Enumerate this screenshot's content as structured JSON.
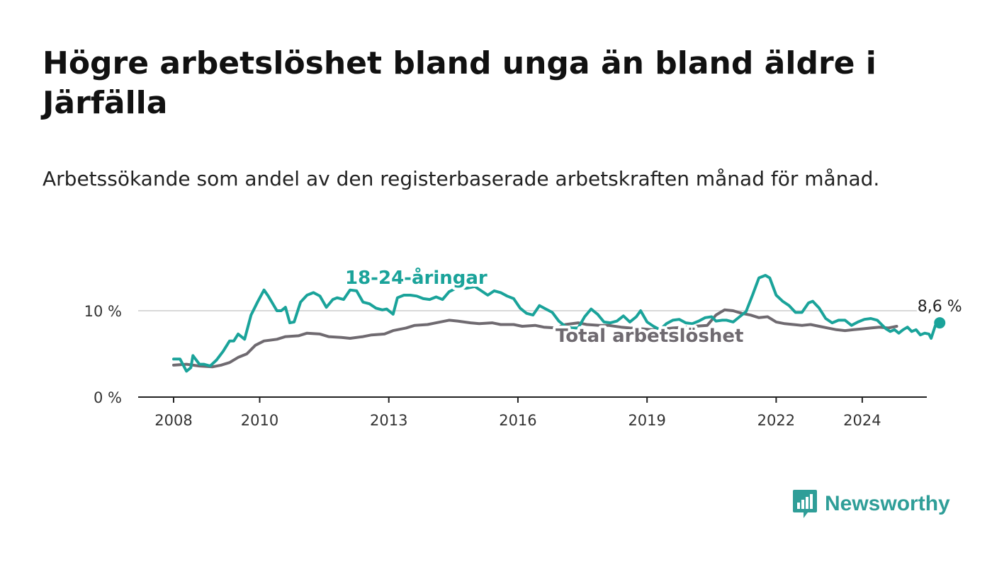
{
  "header": {
    "title": "Högre arbetslöshet bland unga än bland äldre i Järfälla",
    "subtitle": "Arbetssökande som andel av den registerbaserade arbetskraften månad för månad."
  },
  "brand": {
    "name": "Newsworthy",
    "icon": "newsworthy-bar-chart-icon",
    "color": "#2f9e98"
  },
  "chart_data": {
    "type": "line",
    "xlim": [
      2008,
      2025.5
    ],
    "ylim": [
      0,
      15
    ],
    "x_ticks": [
      2008,
      2010,
      2013,
      2016,
      2019,
      2022,
      2024
    ],
    "x_tick_labels": [
      "2008",
      "2010",
      "2013",
      "2016",
      "2019",
      "2022",
      "2024"
    ],
    "y_ticks": [
      0,
      10
    ],
    "y_tick_labels": [
      "0 %",
      "10 %"
    ],
    "grid": "horizontal",
    "series": [
      {
        "name": "Total arbetslöshet",
        "label": "Total arbetslöshet",
        "color": "#6f6a70",
        "points": [
          [
            2008.0,
            3.7
          ],
          [
            2008.3,
            3.8
          ],
          [
            2008.6,
            3.6
          ],
          [
            2008.9,
            3.5
          ],
          [
            2009.1,
            3.7
          ],
          [
            2009.3,
            4.0
          ],
          [
            2009.5,
            4.6
          ],
          [
            2009.7,
            5.0
          ],
          [
            2009.9,
            6.0
          ],
          [
            2010.1,
            6.5
          ],
          [
            2010.4,
            6.7
          ],
          [
            2010.6,
            7.0
          ],
          [
            2010.9,
            7.1
          ],
          [
            2011.1,
            7.4
          ],
          [
            2011.4,
            7.3
          ],
          [
            2011.6,
            7.0
          ],
          [
            2011.9,
            6.9
          ],
          [
            2012.1,
            6.8
          ],
          [
            2012.4,
            7.0
          ],
          [
            2012.6,
            7.2
          ],
          [
            2012.9,
            7.3
          ],
          [
            2013.1,
            7.7
          ],
          [
            2013.4,
            8.0
          ],
          [
            2013.6,
            8.3
          ],
          [
            2013.9,
            8.4
          ],
          [
            2014.1,
            8.6
          ],
          [
            2014.4,
            8.9
          ],
          [
            2014.6,
            8.8
          ],
          [
            2014.9,
            8.6
          ],
          [
            2015.1,
            8.5
          ],
          [
            2015.4,
            8.6
          ],
          [
            2015.6,
            8.4
          ],
          [
            2015.9,
            8.4
          ],
          [
            2016.1,
            8.2
          ],
          [
            2016.4,
            8.3
          ],
          [
            2016.6,
            8.1
          ],
          [
            2016.9,
            8.0
          ],
          [
            2017.1,
            8.4
          ],
          [
            2017.4,
            8.6
          ],
          [
            2017.6,
            8.4
          ],
          [
            2017.9,
            8.3
          ],
          [
            2018.1,
            8.3
          ],
          [
            2018.4,
            8.1
          ],
          [
            2018.6,
            8.0
          ],
          [
            2018.9,
            7.9
          ],
          [
            2019.1,
            7.8
          ],
          [
            2019.4,
            7.9
          ],
          [
            2019.6,
            8.0
          ],
          [
            2019.9,
            8.1
          ],
          [
            2020.1,
            8.2
          ],
          [
            2020.4,
            8.3
          ],
          [
            2020.6,
            9.5
          ],
          [
            2020.8,
            10.1
          ],
          [
            2021.0,
            10.0
          ],
          [
            2021.2,
            9.7
          ],
          [
            2021.4,
            9.5
          ],
          [
            2021.6,
            9.2
          ],
          [
            2021.8,
            9.3
          ],
          [
            2022.0,
            8.7
          ],
          [
            2022.2,
            8.5
          ],
          [
            2022.4,
            8.4
          ],
          [
            2022.6,
            8.3
          ],
          [
            2022.8,
            8.4
          ],
          [
            2023.0,
            8.2
          ],
          [
            2023.2,
            8.0
          ],
          [
            2023.4,
            7.8
          ],
          [
            2023.6,
            7.7
          ],
          [
            2023.8,
            7.8
          ],
          [
            2024.0,
            7.9
          ],
          [
            2024.2,
            8.0
          ],
          [
            2024.4,
            8.1
          ],
          [
            2024.6,
            8.0
          ],
          [
            2024.8,
            8.2
          ]
        ]
      },
      {
        "name": "18-24-åringar",
        "label": "18-24-åringar",
        "color": "#1aa39a",
        "end_label": "8,6 %",
        "points": [
          [
            2008.0,
            4.4
          ],
          [
            2008.15,
            4.4
          ],
          [
            2008.3,
            3.0
          ],
          [
            2008.4,
            3.4
          ],
          [
            2008.45,
            4.8
          ],
          [
            2008.6,
            3.8
          ],
          [
            2008.7,
            3.8
          ],
          [
            2008.85,
            3.6
          ],
          [
            2009.0,
            4.3
          ],
          [
            2009.15,
            5.3
          ],
          [
            2009.3,
            6.5
          ],
          [
            2009.4,
            6.5
          ],
          [
            2009.5,
            7.3
          ],
          [
            2009.65,
            6.7
          ],
          [
            2009.8,
            9.5
          ],
          [
            2009.95,
            11.0
          ],
          [
            2010.1,
            12.4
          ],
          [
            2010.2,
            11.7
          ],
          [
            2010.4,
            10.0
          ],
          [
            2010.5,
            10.0
          ],
          [
            2010.6,
            10.4
          ],
          [
            2010.7,
            8.6
          ],
          [
            2010.8,
            8.7
          ],
          [
            2010.95,
            11.0
          ],
          [
            2011.1,
            11.8
          ],
          [
            2011.25,
            12.1
          ],
          [
            2011.4,
            11.7
          ],
          [
            2011.55,
            10.4
          ],
          [
            2011.7,
            11.3
          ],
          [
            2011.8,
            11.5
          ],
          [
            2011.95,
            11.3
          ],
          [
            2012.1,
            12.4
          ],
          [
            2012.25,
            12.3
          ],
          [
            2012.4,
            11.0
          ],
          [
            2012.55,
            10.8
          ],
          [
            2012.7,
            10.3
          ],
          [
            2012.85,
            10.1
          ],
          [
            2012.95,
            10.2
          ],
          [
            2013.1,
            9.6
          ],
          [
            2013.2,
            11.5
          ],
          [
            2013.35,
            11.8
          ],
          [
            2013.5,
            11.8
          ],
          [
            2013.65,
            11.7
          ],
          [
            2013.8,
            11.4
          ],
          [
            2013.95,
            11.3
          ],
          [
            2014.1,
            11.6
          ],
          [
            2014.25,
            11.3
          ],
          [
            2014.4,
            12.2
          ],
          [
            2014.6,
            12.7
          ],
          [
            2014.8,
            12.6
          ],
          [
            2015.0,
            12.8
          ],
          [
            2015.15,
            12.3
          ],
          [
            2015.3,
            11.8
          ],
          [
            2015.45,
            12.3
          ],
          [
            2015.6,
            12.1
          ],
          [
            2015.75,
            11.7
          ],
          [
            2015.9,
            11.4
          ],
          [
            2016.05,
            10.3
          ],
          [
            2016.2,
            9.7
          ],
          [
            2016.35,
            9.5
          ],
          [
            2016.5,
            10.6
          ],
          [
            2016.65,
            10.2
          ],
          [
            2016.8,
            9.8
          ],
          [
            2016.95,
            8.8
          ],
          [
            2017.1,
            8.2
          ],
          [
            2017.25,
            8.0
          ],
          [
            2017.4,
            8.0
          ],
          [
            2017.55,
            9.3
          ],
          [
            2017.7,
            10.2
          ],
          [
            2017.85,
            9.6
          ],
          [
            2018.0,
            8.7
          ],
          [
            2018.15,
            8.6
          ],
          [
            2018.3,
            8.8
          ],
          [
            2018.45,
            9.4
          ],
          [
            2018.6,
            8.7
          ],
          [
            2018.75,
            9.3
          ],
          [
            2018.85,
            10.0
          ],
          [
            2019.0,
            8.7
          ],
          [
            2019.15,
            8.2
          ],
          [
            2019.3,
            7.8
          ],
          [
            2019.45,
            8.5
          ],
          [
            2019.6,
            8.9
          ],
          [
            2019.75,
            9.0
          ],
          [
            2019.9,
            8.6
          ],
          [
            2020.05,
            8.5
          ],
          [
            2020.2,
            8.8
          ],
          [
            2020.35,
            9.2
          ],
          [
            2020.5,
            9.3
          ],
          [
            2020.6,
            8.8
          ],
          [
            2020.75,
            8.9
          ],
          [
            2020.85,
            8.9
          ],
          [
            2021.0,
            8.7
          ],
          [
            2021.15,
            9.3
          ],
          [
            2021.3,
            9.9
          ],
          [
            2021.45,
            11.8
          ],
          [
            2021.6,
            13.8
          ],
          [
            2021.75,
            14.1
          ],
          [
            2021.85,
            13.8
          ],
          [
            2022.0,
            11.8
          ],
          [
            2022.15,
            11.1
          ],
          [
            2022.3,
            10.6
          ],
          [
            2022.45,
            9.8
          ],
          [
            2022.6,
            9.8
          ],
          [
            2022.75,
            10.9
          ],
          [
            2022.85,
            11.1
          ],
          [
            2023.0,
            10.3
          ],
          [
            2023.15,
            9.1
          ],
          [
            2023.3,
            8.6
          ],
          [
            2023.45,
            8.9
          ],
          [
            2023.6,
            8.9
          ],
          [
            2023.75,
            8.3
          ],
          [
            2023.9,
            8.7
          ],
          [
            2024.05,
            9.0
          ],
          [
            2024.2,
            9.1
          ],
          [
            2024.35,
            8.9
          ],
          [
            2024.45,
            8.4
          ],
          [
            2024.55,
            7.9
          ],
          [
            2024.65,
            7.6
          ],
          [
            2024.75,
            7.8
          ],
          [
            2024.85,
            7.4
          ],
          [
            2024.95,
            7.8
          ],
          [
            2025.05,
            8.1
          ],
          [
            2025.15,
            7.6
          ],
          [
            2025.25,
            7.8
          ],
          [
            2025.35,
            7.2
          ],
          [
            2025.45,
            7.4
          ],
          [
            2025.55,
            7.3
          ],
          [
            2025.6,
            6.8
          ],
          [
            2025.7,
            8.3
          ],
          [
            2025.8,
            8.6
          ]
        ]
      }
    ]
  }
}
